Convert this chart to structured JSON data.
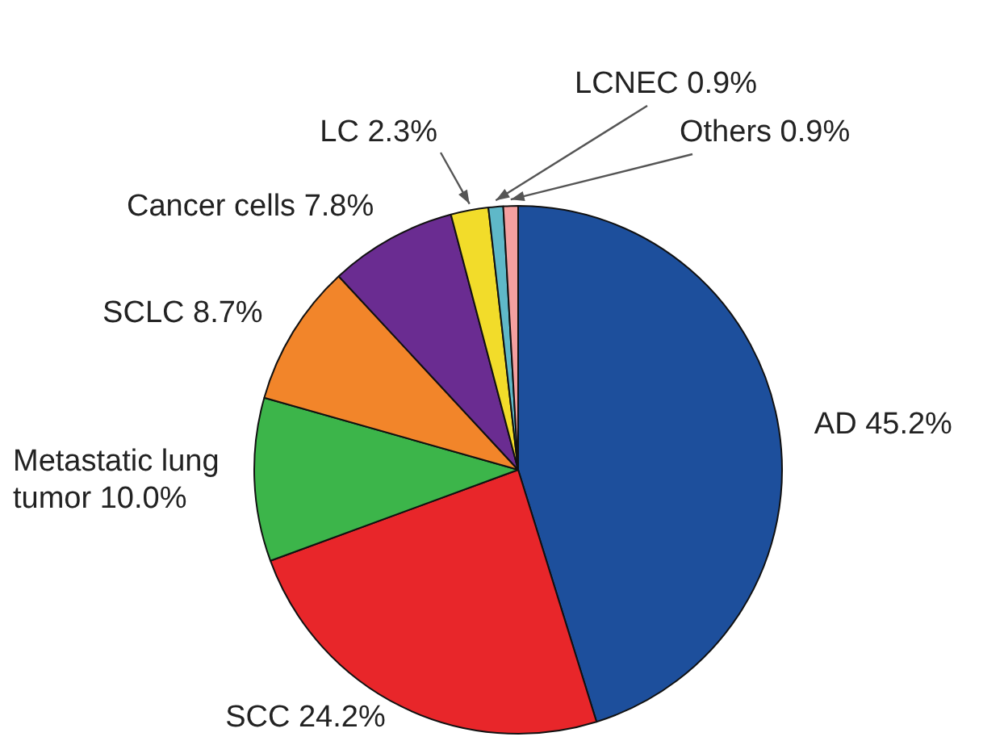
{
  "chart_data": {
    "type": "pie",
    "categories": [
      "AD",
      "SCC",
      "Metastatic lung tumor",
      "SCLC",
      "Cancer cells",
      "LC",
      "LCNEC",
      "Others"
    ],
    "values": [
      45.2,
      24.2,
      10.0,
      8.7,
      7.8,
      2.3,
      0.9,
      0.9
    ],
    "value_labels": [
      "45.2%",
      "24.2%",
      "10.0%",
      "8.7%",
      "7.8%",
      "2.3%",
      "0.9%",
      "0.9%"
    ],
    "colors": [
      "#1d4f9c",
      "#e8262a",
      "#3cb54a",
      "#f2852a",
      "#6a2c91",
      "#f2dc2a",
      "#5fb8c8",
      "#f4a0a0"
    ],
    "legend": false
  }
}
